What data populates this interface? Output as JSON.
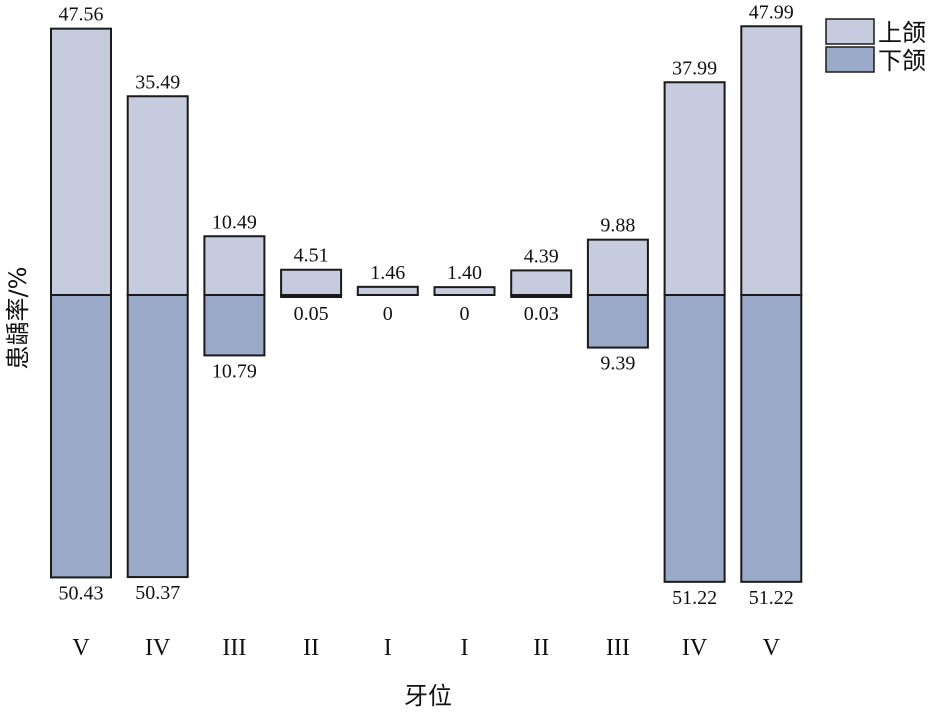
{
  "chart_data": {
    "type": "bar",
    "xlabel": "牙位",
    "ylabel": "患龋率/%",
    "categories": [
      "V",
      "IV",
      "III",
      "II",
      "I",
      "I",
      "II",
      "III",
      "IV",
      "V"
    ],
    "series": [
      {
        "name": "上颌",
        "color": "#c6cbdd",
        "values": [
          47.56,
          35.49,
          10.49,
          4.51,
          1.46,
          1.4,
          4.39,
          9.88,
          37.99,
          47.99
        ],
        "labels": [
          "47.56",
          "35.49",
          "10.49",
          "4.51",
          "1.46",
          "1.40",
          "4.39",
          "9.88",
          "37.99",
          "47.99"
        ]
      },
      {
        "name": "下颌",
        "color": "#9ba9c9",
        "values": [
          50.43,
          50.37,
          10.79,
          0.05,
          0,
          0,
          0.03,
          9.39,
          51.22,
          51.22
        ],
        "labels": [
          "50.43",
          "50.37",
          "10.79",
          "0.05",
          "0",
          "0",
          "0.03",
          "9.39",
          "51.22",
          "51.22"
        ]
      }
    ],
    "layout": "mirrored: upper jaw above baseline, lower jaw below baseline",
    "legend_position": "top-right",
    "grid": false
  }
}
